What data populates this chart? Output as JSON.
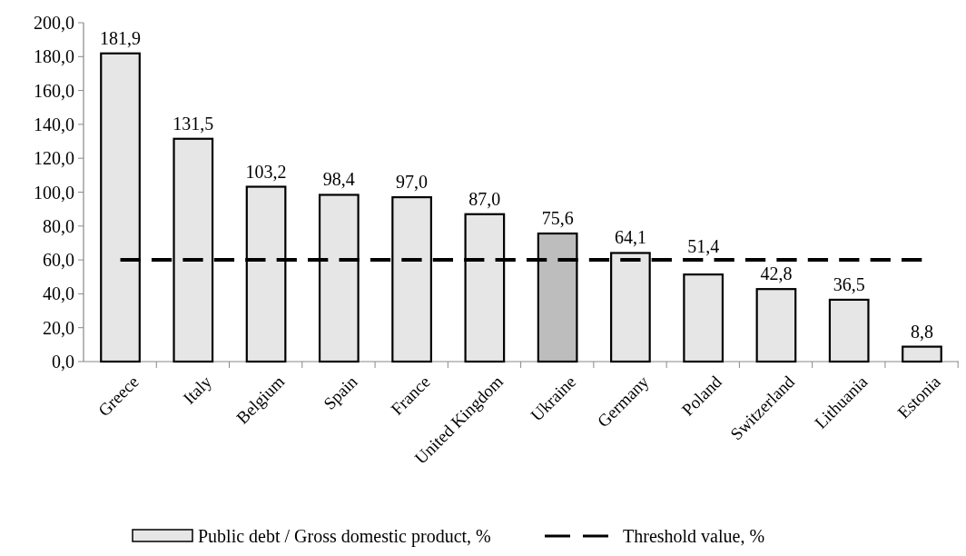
{
  "chart_data": {
    "type": "bar",
    "categories": [
      "Greece",
      "Italy",
      "Belgium",
      "Spain",
      "France",
      "United Kingdom",
      "Ukraine",
      "Germany",
      "Poland",
      "Switzerland",
      "Lithuania",
      "Estonia"
    ],
    "series": [
      {
        "name": "Public debt / Gross domestic product, %",
        "colors": [
          "#e6e6e6",
          "#e6e6e6",
          "#e6e6e6",
          "#e6e6e6",
          "#e6e6e6",
          "#e6e6e6",
          "#bdbdbd",
          "#e6e6e6",
          "#e6e6e6",
          "#e6e6e6",
          "#e6e6e6",
          "#e6e6e6"
        ],
        "values": [
          181.9,
          131.5,
          103.2,
          98.4,
          97.0,
          87.0,
          75.6,
          64.1,
          51.4,
          42.8,
          36.5,
          8.8
        ],
        "value_labels": [
          "181,9",
          "131,5",
          "103,2",
          "98,4",
          "97,0",
          "87,0",
          "75,6",
          "64,1",
          "51,4",
          "42,8",
          "36,5",
          "8,8"
        ]
      },
      {
        "name": "Threshold value, %",
        "type": "line",
        "color": "#000000",
        "line_style": "dashed",
        "marker": "none",
        "values": [
          60,
          60,
          60,
          60,
          60,
          60,
          60,
          60,
          60,
          60,
          60,
          60
        ]
      }
    ],
    "ylim": [
      0,
      200
    ],
    "yticks": [
      {
        "value": 0,
        "label": "0,0"
      },
      {
        "value": 20,
        "label": "20,0"
      },
      {
        "value": 40,
        "label": "40,0"
      },
      {
        "value": 60,
        "label": "60,0"
      },
      {
        "value": 80,
        "label": "80,0"
      },
      {
        "value": 100,
        "label": "100,0"
      },
      {
        "value": 120,
        "label": "120,0"
      },
      {
        "value": 140,
        "label": "140,0"
      },
      {
        "value": 160,
        "label": "160,0"
      },
      {
        "value": 180,
        "label": "180,0"
      },
      {
        "value": 200,
        "label": "200,0"
      }
    ],
    "grid": false,
    "legend": "bottom"
  }
}
